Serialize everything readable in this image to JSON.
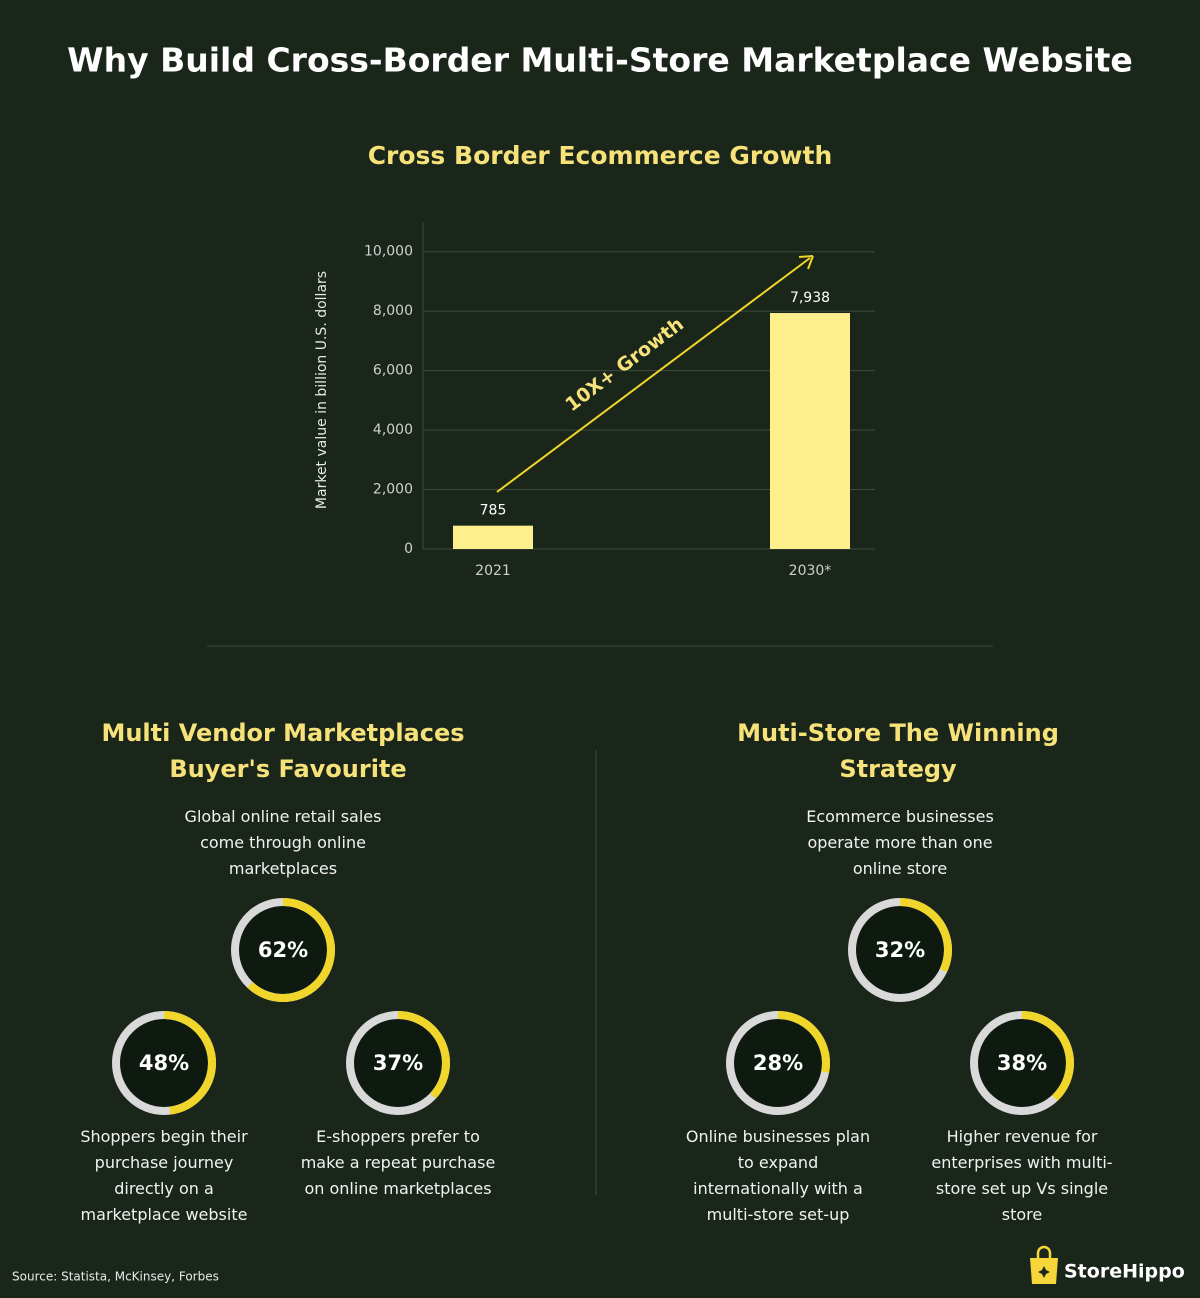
{
  "title": "Why Build Cross-Border Multi-Store Marketplace Website",
  "chart_data": {
    "type": "bar",
    "title": "Cross Border Ecommerce Growth",
    "y_label": "Market value in billion U.S. dollars",
    "categories": [
      "2021",
      "2030*"
    ],
    "values": [
      785,
      7938
    ],
    "value_labels": [
      "785",
      "7,938"
    ],
    "color": "#fcef8c",
    "ylim": [
      0,
      11000
    ],
    "yticks": [
      0,
      {
        "value": 2000,
        "label": "2,000"
      },
      {
        "value": 4000,
        "label": "4,000"
      },
      {
        "value": 6000,
        "label": "6,000"
      },
      {
        "value": 8000,
        "label": "8,000"
      },
      {
        "value": 10000,
        "label": "10,000"
      }
    ],
    "grid": true,
    "annotation": "10X+ Growth"
  },
  "sections": [
    {
      "title_lines": [
        "Multi Vendor Marketplaces",
        "Buyer's Favourite"
      ],
      "stats": [
        {
          "value": 62,
          "value_label": "62%",
          "caption": "Global online retail sales come through online marketplaces"
        },
        {
          "value": 48,
          "value_label": "48%",
          "caption": "Shoppers begin their purchase journey directly on a marketplace website"
        },
        {
          "value": 37,
          "value_label": "37%",
          "caption": "E-shoppers prefer to make a repeat purchase on online marketplaces"
        }
      ]
    },
    {
      "title_lines": [
        "Muti-Store The Winning",
        "Strategy"
      ],
      "stats": [
        {
          "value": 32,
          "value_label": "32%",
          "caption": "Ecommerce businesses operate more than one online store"
        },
        {
          "value": 28,
          "value_label": "28%",
          "caption": "Online businesses plan to expand internationally with a multi-store set-up"
        },
        {
          "value": 38,
          "value_label": "38%",
          "caption": "Higher revenue for enterprises with multi-store set up Vs single store"
        }
      ]
    }
  ],
  "source": "Source: Statista, McKinsey, Forbes",
  "brand": "StoreHippo"
}
